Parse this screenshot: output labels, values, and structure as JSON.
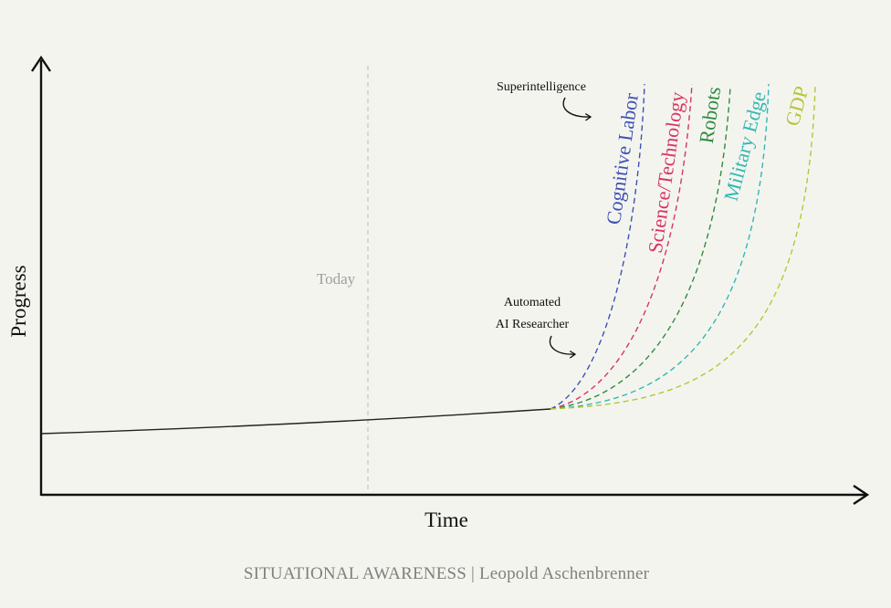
{
  "diagram": {
    "axes": {
      "x_label": "Time",
      "y_label": "Progress"
    },
    "marker": {
      "label": "Today"
    },
    "annotations": {
      "superintelligence": "Superintelligence",
      "automated_researcher_line1": "Automated",
      "automated_researcher_line2": "AI Researcher"
    },
    "curves": [
      {
        "label": "Cognitive Labor",
        "color": "#3f51b5"
      },
      {
        "label": "Science/Technology",
        "color": "#d6365f"
      },
      {
        "label": "Robots",
        "color": "#2e8b3e"
      },
      {
        "label": "Military Edge",
        "color": "#32b8b3"
      },
      {
        "label": "GDP",
        "color": "#b7c536"
      }
    ],
    "colors": {
      "axis": "#111111",
      "today_line": "#c9c9c4",
      "baseline": "#222222",
      "background": "#f4f4ef"
    }
  },
  "footer": {
    "credit": "SITUATIONAL AWARENESS | Leopold Aschenbrenner"
  }
}
